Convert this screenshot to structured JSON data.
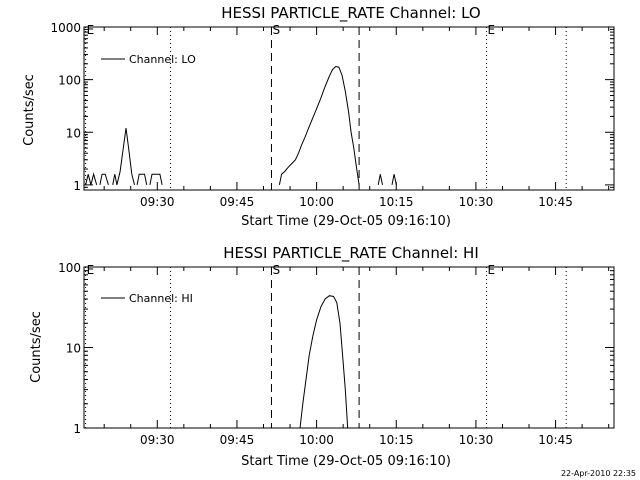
{
  "chart_data": [
    {
      "type": "line",
      "title": "HESSI PARTICLE_RATE Channel: LO",
      "xlabel": "Start Time (29-Oct-05 09:16:10)",
      "ylabel": "Counts/sec",
      "yscale": "log",
      "xlim": [
        16.2,
        116
      ],
      "ylim": [
        0.8,
        1000
      ],
      "xticks": [
        {
          "t": 30,
          "label": "09:30"
        },
        {
          "t": 45,
          "label": "09:45"
        },
        {
          "t": 60,
          "label": "10:00"
        },
        {
          "t": 75,
          "label": "10:15"
        },
        {
          "t": 90,
          "label": "10:30"
        },
        {
          "t": 105,
          "label": "10:45"
        }
      ],
      "yticks": [
        {
          "v": 1,
          "label": "1"
        },
        {
          "v": 10,
          "label": "10"
        },
        {
          "v": 100,
          "label": "100"
        },
        {
          "v": 1000,
          "label": "1000"
        }
      ],
      "legend": {
        "label": "Channel: LO",
        "position": "top-left"
      },
      "markers": [
        {
          "t": 16.5,
          "style": "dotted",
          "label": "E"
        },
        {
          "t": 32.5,
          "style": "dotted",
          "label": ""
        },
        {
          "t": 51.5,
          "style": "dashed",
          "label": "S"
        },
        {
          "t": 68.0,
          "style": "dashed",
          "label": ""
        },
        {
          "t": 92.0,
          "style": "dotted",
          "label": "E"
        },
        {
          "t": 107.0,
          "style": "dotted",
          "label": ""
        }
      ],
      "series": [
        {
          "segments": [
            [
              [
                16.5,
                1
              ],
              [
                17.0,
                1.6
              ],
              [
                17.5,
                1
              ],
              [
                18.0,
                1.6
              ],
              [
                18.6,
                1
              ]
            ],
            [
              [
                19.2,
                1
              ],
              [
                19.6,
                1.6
              ],
              [
                20.2,
                1.6
              ],
              [
                20.8,
                1
              ]
            ],
            [
              [
                21.6,
                1
              ],
              [
                22.0,
                1.6
              ],
              [
                22.4,
                1
              ],
              [
                23.0,
                1.8
              ],
              [
                23.6,
                5
              ],
              [
                24.1,
                12
              ],
              [
                24.6,
                5
              ],
              [
                25.2,
                1.6
              ],
              [
                25.7,
                1
              ]
            ],
            [
              [
                26.2,
                1
              ],
              [
                26.6,
                1.6
              ],
              [
                27.6,
                1.6
              ],
              [
                28.0,
                1
              ]
            ],
            [
              [
                28.6,
                1
              ],
              [
                29.0,
                1.6
              ],
              [
                30.5,
                1.6
              ],
              [
                30.9,
                1
              ]
            ],
            [
              [
                53.0,
                1
              ],
              [
                53.4,
                1.6
              ],
              [
                54.0,
                1.8
              ],
              [
                54.7,
                2.2
              ],
              [
                55.4,
                2.6
              ],
              [
                56.0,
                3.0
              ],
              [
                56.6,
                4.0
              ],
              [
                57.2,
                5.8
              ],
              [
                57.8,
                8
              ],
              [
                58.5,
                12
              ],
              [
                59.2,
                18
              ],
              [
                60.0,
                28
              ],
              [
                60.8,
                45
              ],
              [
                61.5,
                70
              ],
              [
                62.3,
                110
              ],
              [
                63.0,
                155
              ],
              [
                63.6,
                178
              ],
              [
                64.2,
                172
              ],
              [
                64.8,
                120
              ],
              [
                65.4,
                60
              ],
              [
                66.0,
                25
              ],
              [
                66.5,
                10
              ],
              [
                67.0,
                5
              ],
              [
                67.5,
                2.2
              ],
              [
                68.0,
                1
              ]
            ],
            [
              [
                71.6,
                1
              ],
              [
                72.0,
                1.6
              ],
              [
                72.4,
                1
              ]
            ],
            [
              [
                74.2,
                1
              ],
              [
                74.6,
                1.6
              ],
              [
                75.0,
                1
              ]
            ]
          ]
        }
      ]
    },
    {
      "type": "line",
      "title": "HESSI PARTICLE_RATE Channel: HI",
      "xlabel": "Start Time (29-Oct-05 09:16:10)",
      "ylabel": "Counts/sec",
      "yscale": "log",
      "xlim": [
        16.2,
        116
      ],
      "ylim": [
        1,
        100
      ],
      "xticks": [
        {
          "t": 30,
          "label": "09:30"
        },
        {
          "t": 45,
          "label": "09:45"
        },
        {
          "t": 60,
          "label": "10:00"
        },
        {
          "t": 75,
          "label": "10:15"
        },
        {
          "t": 90,
          "label": "10:30"
        },
        {
          "t": 105,
          "label": "10:45"
        }
      ],
      "yticks": [
        {
          "v": 1,
          "label": "1"
        },
        {
          "v": 10,
          "label": "10"
        },
        {
          "v": 100,
          "label": "100"
        }
      ],
      "legend": {
        "label": "Channel: HI",
        "position": "top-left"
      },
      "markers": [
        {
          "t": 16.5,
          "style": "dotted",
          "label": "E"
        },
        {
          "t": 32.5,
          "style": "dotted",
          "label": ""
        },
        {
          "t": 51.5,
          "style": "dashed",
          "label": "S"
        },
        {
          "t": 68.0,
          "style": "dashed",
          "label": ""
        },
        {
          "t": 92.0,
          "style": "dotted",
          "label": "E"
        },
        {
          "t": 107.0,
          "style": "dotted",
          "label": ""
        }
      ],
      "series": [
        {
          "segments": [
            [
              [
                56.8,
                0.9
              ],
              [
                57.4,
                2
              ],
              [
                58.0,
                4
              ],
              [
                58.6,
                8
              ],
              [
                59.3,
                14
              ],
              [
                60.0,
                22
              ],
              [
                60.8,
                32
              ],
              [
                61.6,
                40
              ],
              [
                62.4,
                44
              ],
              [
                63.2,
                43
              ],
              [
                63.8,
                36
              ],
              [
                64.4,
                20
              ],
              [
                64.9,
                8
              ],
              [
                65.4,
                3
              ],
              [
                65.9,
                0.9
              ]
            ]
          ]
        }
      ]
    }
  ],
  "footer": {
    "timestamp": "22-Apr-2010 22:35"
  }
}
